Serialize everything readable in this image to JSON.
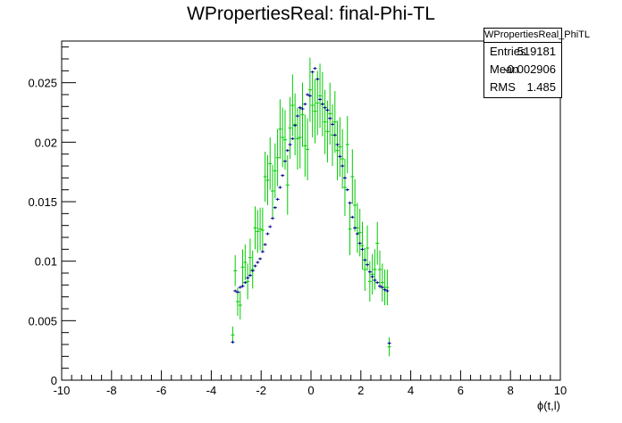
{
  "chart_data": {
    "type": "scatter",
    "title": "WPropertiesReal: final-Phi-TL",
    "xlabel": "ϕ(t,l)",
    "ylabel": "",
    "xlim": [
      -10,
      10
    ],
    "ylim": [
      0,
      0.0285
    ],
    "xticks": [
      -10,
      -8,
      -6,
      -4,
      -2,
      0,
      2,
      4,
      6,
      8,
      10
    ],
    "yticks": [
      0,
      0.005,
      0.01,
      0.015,
      0.02,
      0.025
    ],
    "xtick_labels": [
      "-10",
      "-8",
      "-6",
      "-4",
      "-2",
      "0",
      "2",
      "4",
      "6",
      "8",
      "10"
    ],
    "ytick_labels": [
      "0",
      "0.005",
      "0.01",
      "0.015",
      "0.02",
      "0.025"
    ],
    "grid": false,
    "series": [
      {
        "color": "#00008b",
        "style": "cross-markers",
        "x": [
          -3.14,
          -3.04,
          -2.94,
          -2.84,
          -2.74,
          -2.64,
          -2.54,
          -2.44,
          -2.34,
          -2.24,
          -2.14,
          -2.04,
          -1.94,
          -1.84,
          -1.74,
          -1.64,
          -1.54,
          -1.44,
          -1.34,
          -1.24,
          -1.14,
          -1.04,
          -0.94,
          -0.84,
          -0.74,
          -0.64,
          -0.54,
          -0.44,
          -0.34,
          -0.24,
          -0.14,
          -0.04,
          0.06,
          0.16,
          0.26,
          0.36,
          0.46,
          0.56,
          0.66,
          0.76,
          0.86,
          0.96,
          1.06,
          1.16,
          1.26,
          1.36,
          1.46,
          1.56,
          1.66,
          1.76,
          1.86,
          1.96,
          2.06,
          2.16,
          2.26,
          2.36,
          2.46,
          2.56,
          2.66,
          2.76,
          2.86,
          2.96,
          3.06,
          3.14
        ],
        "y": [
          0.0032,
          0.0075,
          0.0074,
          0.0078,
          0.0079,
          0.0082,
          0.0086,
          0.0088,
          0.0092,
          0.0096,
          0.0099,
          0.0102,
          0.0108,
          0.0114,
          0.0123,
          0.0129,
          0.0136,
          0.0145,
          0.0152,
          0.0162,
          0.0172,
          0.0184,
          0.0193,
          0.0198,
          0.0203,
          0.0214,
          0.0222,
          0.0229,
          0.0228,
          0.0232,
          0.024,
          0.0239,
          0.0259,
          0.0262,
          0.0253,
          0.0236,
          0.0232,
          0.0229,
          0.0227,
          0.022,
          0.0215,
          0.0206,
          0.0198,
          0.0188,
          0.018,
          0.017,
          0.016,
          0.0149,
          0.0137,
          0.0128,
          0.0123,
          0.0115,
          0.011,
          0.0101,
          0.0097,
          0.0091,
          0.0087,
          0.0084,
          0.0082,
          0.0079,
          0.0078,
          0.0076,
          0.0075,
          0.0031
        ],
        "err": [
          8e-05,
          9e-05,
          9e-05,
          9e-05,
          9e-05,
          9e-05,
          9e-05,
          9e-05,
          9e-05,
          9e-05,
          9e-05,
          0.0001,
          0.0001,
          0.0001,
          0.0001,
          0.0001,
          0.0001,
          0.0001,
          0.0001,
          0.0001,
          0.0001,
          0.0001,
          0.0001,
          0.0001,
          0.0001,
          0.0001,
          0.0001,
          0.0001,
          0.0001,
          0.0001,
          0.0001,
          0.0001,
          0.00011,
          0.00011,
          0.00011,
          0.0001,
          0.0001,
          0.0001,
          0.0001,
          0.0001,
          0.0001,
          0.0001,
          0.0001,
          0.0001,
          0.0001,
          0.0001,
          0.0001,
          0.0001,
          0.0001,
          0.0001,
          0.0001,
          0.0001,
          0.0001,
          0.0001,
          0.0001,
          9e-05,
          9e-05,
          9e-05,
          9e-05,
          9e-05,
          9e-05,
          9e-05,
          9e-05,
          8e-05
        ]
      },
      {
        "color": "#00cc00",
        "style": "cross-markers",
        "x": [
          -3.14,
          -3.04,
          -2.94,
          -2.84,
          -2.74,
          -2.64,
          -2.54,
          -2.44,
          -2.34,
          -2.24,
          -2.14,
          -2.04,
          -1.94,
          -1.84,
          -1.74,
          -1.64,
          -1.54,
          -1.44,
          -1.34,
          -1.24,
          -1.14,
          -1.04,
          -0.94,
          -0.84,
          -0.74,
          -0.64,
          -0.54,
          -0.44,
          -0.34,
          -0.24,
          -0.14,
          -0.04,
          0.06,
          0.16,
          0.26,
          0.36,
          0.46,
          0.56,
          0.66,
          0.76,
          0.86,
          0.96,
          1.06,
          1.16,
          1.26,
          1.36,
          1.46,
          1.56,
          1.66,
          1.76,
          1.86,
          1.96,
          2.06,
          2.16,
          2.26,
          2.36,
          2.46,
          2.56,
          2.66,
          2.76,
          2.86,
          2.96,
          3.06,
          3.14
        ],
        "y": [
          0.0038,
          0.0092,
          0.0066,
          0.0063,
          0.0095,
          0.0099,
          0.0083,
          0.0103,
          0.0093,
          0.0128,
          0.0125,
          0.0127,
          0.0126,
          0.0171,
          0.0168,
          0.0182,
          0.0159,
          0.0176,
          0.0187,
          0.0211,
          0.0204,
          0.0202,
          0.0164,
          0.0212,
          0.0231,
          0.0215,
          0.0203,
          0.0204,
          0.0223,
          0.0197,
          0.0194,
          0.0244,
          0.0231,
          0.0226,
          0.0233,
          0.0239,
          0.0232,
          0.0217,
          0.0209,
          0.0224,
          0.0206,
          0.0217,
          0.0193,
          0.0196,
          0.0186,
          0.0162,
          0.0198,
          0.0127,
          0.0171,
          0.0147,
          0.0128,
          0.0124,
          0.0113,
          0.0093,
          0.0111,
          0.0083,
          0.0089,
          0.0093,
          0.0115,
          0.0093,
          0.0082,
          0.0078,
          0.0078,
          0.0028
        ],
        "err": [
          0.0007,
          0.0013,
          0.0012,
          0.0012,
          0.0015,
          0.0015,
          0.0015,
          0.0016,
          0.0016,
          0.0018,
          0.0018,
          0.0018,
          0.0019,
          0.0021,
          0.0021,
          0.0022,
          0.0022,
          0.0023,
          0.0024,
          0.0025,
          0.0025,
          0.0025,
          0.0025,
          0.0026,
          0.0026,
          0.0026,
          0.0026,
          0.0026,
          0.0027,
          0.0026,
          0.0026,
          0.0027,
          0.0027,
          0.0027,
          0.0027,
          0.0027,
          0.0027,
          0.0027,
          0.0026,
          0.0026,
          0.0026,
          0.0026,
          0.0025,
          0.0025,
          0.0025,
          0.0024,
          0.0024,
          0.0022,
          0.0023,
          0.0022,
          0.0021,
          0.002,
          0.002,
          0.0018,
          0.0019,
          0.0017,
          0.0017,
          0.0017,
          0.0018,
          0.0016,
          0.0016,
          0.0015,
          0.0015,
          0.0008
        ]
      }
    ],
    "stats_box": {
      "title": "WPropertiesReal_PhiTL",
      "rows": [
        {
          "key": "Entries",
          "value": "519181"
        },
        {
          "key": "Mean",
          "value": "-0.002906"
        },
        {
          "key": "RMS",
          "value": "1.485"
        }
      ]
    }
  }
}
